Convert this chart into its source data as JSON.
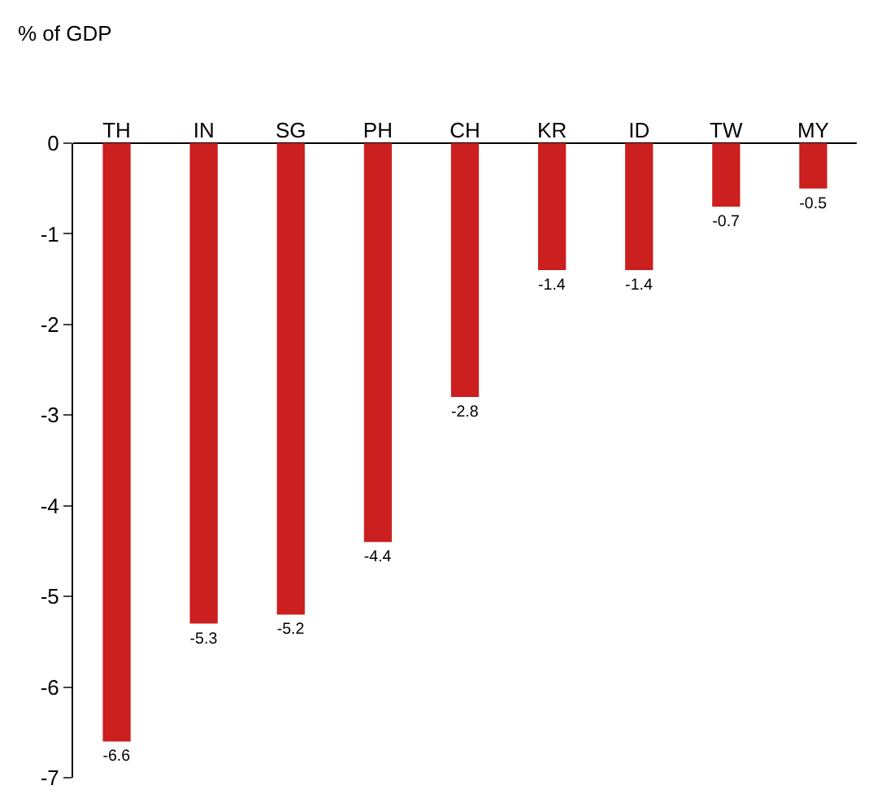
{
  "chart_data": {
    "type": "bar",
    "ylabel": "% of GDP",
    "categories": [
      "TH",
      "IN",
      "SG",
      "PH",
      "CH",
      "KR",
      "ID",
      "TW",
      "MY"
    ],
    "values": [
      -6.6,
      -5.3,
      -5.2,
      -4.4,
      -2.8,
      -1.4,
      -1.4,
      -0.7,
      -0.5
    ],
    "color": "#cc1f1f",
    "ylim": [
      -7,
      0
    ],
    "yticks": [
      0,
      -1,
      -2,
      -3,
      -4,
      -5,
      -6,
      -7
    ],
    "data_labels": true
  }
}
